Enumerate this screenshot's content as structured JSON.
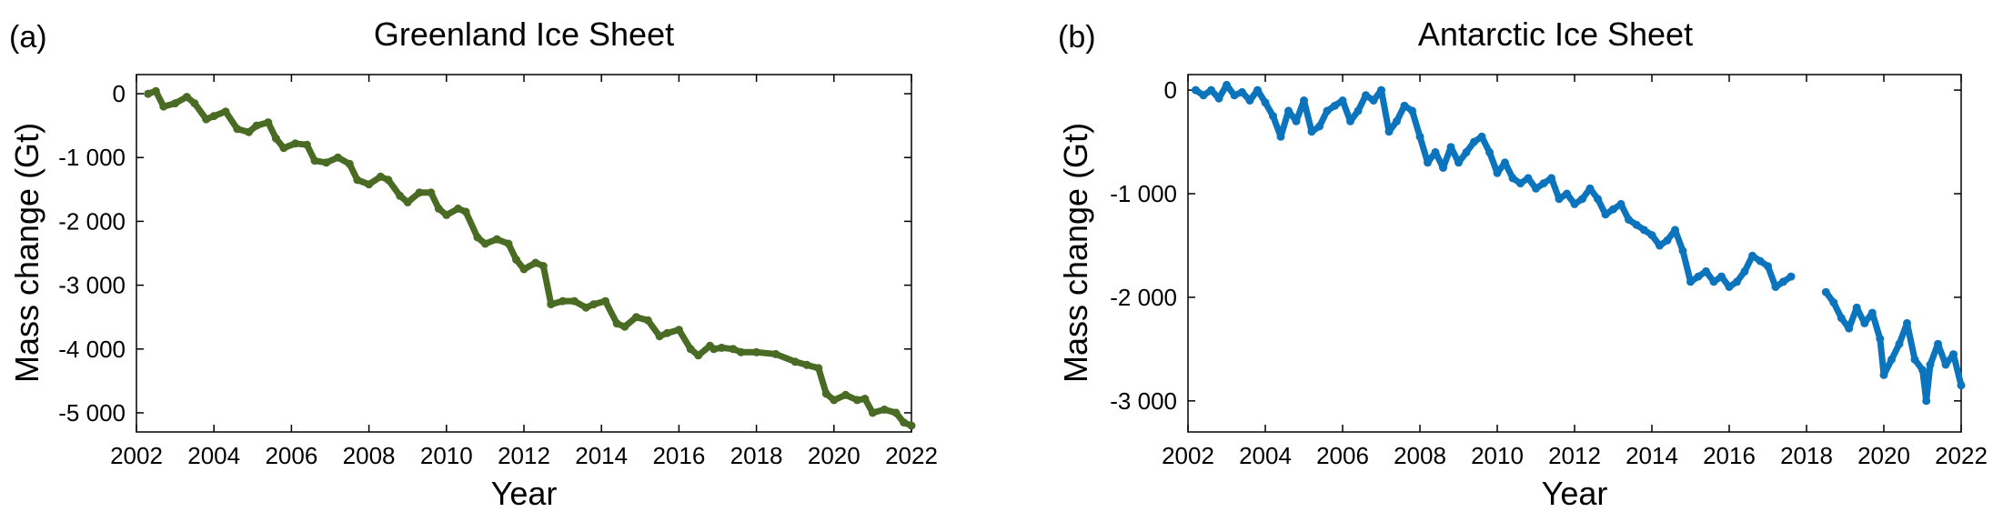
{
  "chart_data": [
    {
      "type": "line",
      "panel_label": "(a)",
      "title": "Greenland Ice Sheet",
      "xlabel": "Year",
      "ylabel": "Mass change (Gt)",
      "xlim": [
        2002,
        2022
      ],
      "ylim": [
        -5300,
        300
      ],
      "xticks": [
        2002,
        2004,
        2006,
        2008,
        2010,
        2012,
        2014,
        2016,
        2018,
        2020,
        2022
      ],
      "yticks": [
        0,
        -1000,
        -2000,
        -3000,
        -4000,
        -5000
      ],
      "ytick_labels": [
        "0",
        "-1 000",
        "-2 000",
        "-3 000",
        "-4 000",
        "-5 000"
      ],
      "grid": false,
      "color": "#4a6b23",
      "series": [
        {
          "x": [
            2002.3,
            2002.5,
            2002.7,
            2003.0,
            2003.3,
            2003.5,
            2003.8,
            2004.0,
            2004.3,
            2004.6,
            2004.9,
            2005.1,
            2005.4,
            2005.6,
            2005.8,
            2006.1,
            2006.4,
            2006.6,
            2006.9,
            2007.2,
            2007.5,
            2007.7,
            2008.0,
            2008.3,
            2008.5,
            2008.8,
            2009.0,
            2009.3,
            2009.6,
            2009.8,
            2010.0,
            2010.3,
            2010.5,
            2010.8,
            2011.0,
            2011.3,
            2011.6,
            2011.8,
            2012.0,
            2012.3,
            2012.5,
            2012.7,
            2013.0,
            2013.3,
            2013.6,
            2013.8,
            2014.1,
            2014.4,
            2014.6,
            2014.9,
            2015.2,
            2015.5,
            2015.7,
            2016.0,
            2016.3,
            2016.5,
            2016.8,
            2016.9,
            2017.1,
            2017.4,
            2017.6,
            2018.0,
            2018.5,
            2019.0,
            2019.3,
            2019.6,
            2019.8,
            2020.0,
            2020.3,
            2020.6,
            2020.8,
            2021.0,
            2021.3,
            2021.6,
            2021.8,
            2022.0
          ],
          "y": [
            0,
            40,
            -200,
            -150,
            -50,
            -150,
            -400,
            -350,
            -280,
            -550,
            -600,
            -500,
            -450,
            -700,
            -850,
            -780,
            -800,
            -1050,
            -1080,
            -1000,
            -1100,
            -1350,
            -1420,
            -1300,
            -1350,
            -1600,
            -1700,
            -1550,
            -1550,
            -1800,
            -1900,
            -1800,
            -1850,
            -2250,
            -2350,
            -2280,
            -2350,
            -2600,
            -2750,
            -2650,
            -2700,
            -3300,
            -3250,
            -3250,
            -3350,
            -3300,
            -3250,
            -3600,
            -3650,
            -3500,
            -3550,
            -3800,
            -3750,
            -3700,
            -4000,
            -4100,
            -3950,
            -4000,
            -3980,
            -4000,
            -4050,
            -4050,
            -4080,
            -4200,
            -4250,
            -4300,
            -4700,
            -4800,
            -4720,
            -4800,
            -4780,
            -5000,
            -4950,
            -5000,
            -5150,
            -5200
          ]
        }
      ]
    },
    {
      "type": "line",
      "panel_label": "(b)",
      "title": "Antarctic Ice Sheet",
      "xlabel": "Year",
      "ylabel": "Mass change (Gt)",
      "xlim": [
        2002,
        2022
      ],
      "ylim": [
        -3300,
        150
      ],
      "xticks": [
        2002,
        2004,
        2006,
        2008,
        2010,
        2012,
        2014,
        2016,
        2018,
        2020,
        2022
      ],
      "yticks": [
        0,
        -1000,
        -2000,
        -3000
      ],
      "ytick_labels": [
        "0",
        "-1 000",
        "-2 000",
        "-3 000"
      ],
      "grid": false,
      "color": "#0b74bd",
      "series": [
        {
          "x": [
            2002.2,
            2002.4,
            2002.6,
            2002.8,
            2003.0,
            2003.2,
            2003.4,
            2003.6,
            2003.8,
            2004.0,
            2004.2,
            2004.4,
            2004.6,
            2004.8,
            2005.0,
            2005.2,
            2005.4,
            2005.6,
            2005.8,
            2006.0,
            2006.2,
            2006.4,
            2006.6,
            2006.8,
            2007.0,
            2007.2,
            2007.4,
            2007.6,
            2007.8,
            2008.0,
            2008.2,
            2008.4,
            2008.6,
            2008.8,
            2009.0,
            2009.2,
            2009.4,
            2009.6,
            2009.8,
            2010.0,
            2010.2,
            2010.4,
            2010.6,
            2010.8,
            2011.0,
            2011.2,
            2011.4,
            2011.6,
            2011.8,
            2012.0,
            2012.2,
            2012.4,
            2012.6,
            2012.8,
            2013.0,
            2013.2,
            2013.4,
            2013.6,
            2013.8,
            2014.0,
            2014.2,
            2014.4,
            2014.6,
            2014.8,
            2015.0,
            2015.2,
            2015.4,
            2015.6,
            2015.8,
            2016.0,
            2016.2,
            2016.4,
            2016.6,
            2016.8,
            2017.0,
            2017.2,
            2017.4,
            2017.6
          ],
          "y": [
            0,
            -50,
            0,
            -80,
            50,
            -50,
            -20,
            -100,
            0,
            -120,
            -250,
            -450,
            -200,
            -300,
            -100,
            -400,
            -350,
            -200,
            -150,
            -100,
            -300,
            -200,
            -50,
            -100,
            0,
            -400,
            -300,
            -150,
            -200,
            -450,
            -700,
            -600,
            -750,
            -550,
            -700,
            -600,
            -500,
            -450,
            -600,
            -800,
            -700,
            -850,
            -900,
            -850,
            -950,
            -900,
            -850,
            -1050,
            -1000,
            -1100,
            -1050,
            -950,
            -1050,
            -1200,
            -1150,
            -1100,
            -1250,
            -1300,
            -1350,
            -1400,
            -1500,
            -1450,
            -1350,
            -1550,
            -1850,
            -1800,
            -1750,
            -1850,
            -1800,
            -1900,
            -1850,
            -1750,
            -1600,
            -1650,
            -1700,
            -1900,
            -1850,
            -1800
          ]
        },
        {
          "x": [
            2018.5,
            2018.7,
            2018.9,
            2019.1,
            2019.3,
            2019.5,
            2019.7,
            2019.9,
            2020.0,
            2020.2,
            2020.4,
            2020.6,
            2020.8,
            2021.0,
            2021.1,
            2021.2,
            2021.4,
            2021.6,
            2021.8,
            2022.0
          ],
          "y": [
            -1950,
            -2050,
            -2200,
            -2300,
            -2100,
            -2250,
            -2150,
            -2400,
            -2750,
            -2600,
            -2450,
            -2250,
            -2600,
            -2700,
            -3000,
            -2650,
            -2450,
            -2650,
            -2550,
            -2850
          ]
        }
      ]
    }
  ]
}
